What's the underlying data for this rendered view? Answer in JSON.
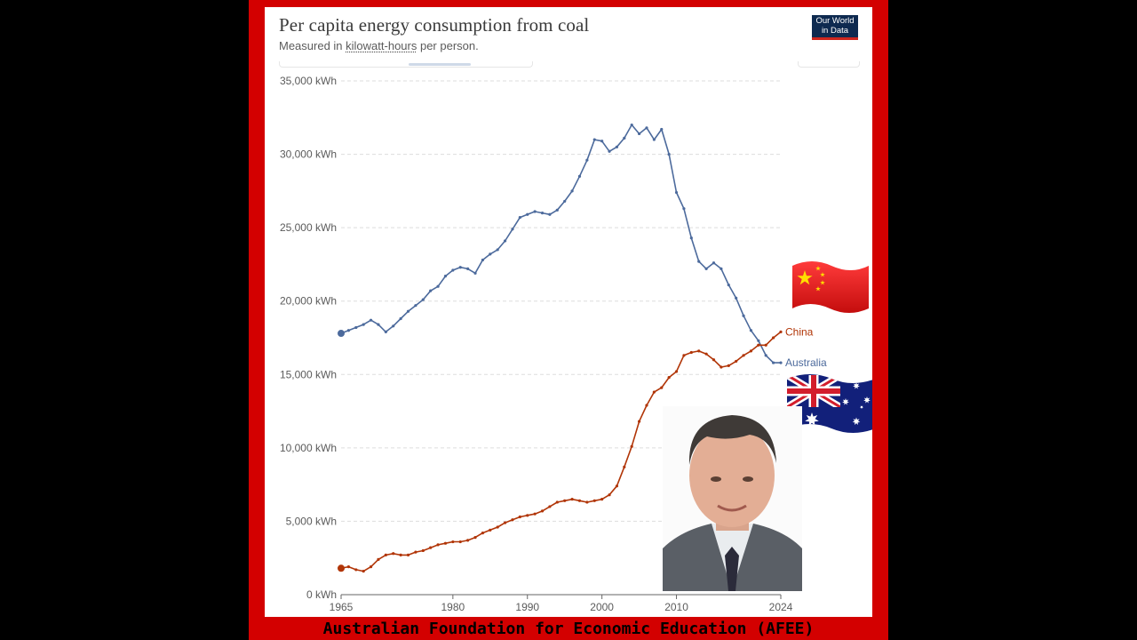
{
  "header": {
    "title": "Per capita energy consumption from coal",
    "subtitle_prefix": "Measured in ",
    "subtitle_unit": "kilowatt-hours",
    "subtitle_suffix": " per person.",
    "logo_line1": "Our World",
    "logo_line2": "in Data"
  },
  "footer": {
    "caption": "Australian Foundation for Economic Education (AFEE)"
  },
  "colors": {
    "frame": "#d30000",
    "australia": "#4c6a9c",
    "china": "#b13507",
    "grid": "#dddddd",
    "axis": "#666666"
  },
  "flags": [
    "china-flag",
    "australia-flag"
  ],
  "photo": "person-photo",
  "chart_data": {
    "type": "line",
    "title": "Per capita energy consumption from coal",
    "subtitle": "Measured in kilowatt-hours per person.",
    "xlabel": "",
    "ylabel": "",
    "xlim": [
      1965,
      2024
    ],
    "ylim": [
      0,
      35000
    ],
    "grid": true,
    "y_ticks": [
      "0 kWh",
      "5,000 kWh",
      "10,000 kWh",
      "15,000 kWh",
      "20,000 kWh",
      "25,000 kWh",
      "30,000 kWh",
      "35,000 kWh"
    ],
    "y_tick_values": [
      0,
      5000,
      10000,
      15000,
      20000,
      25000,
      30000,
      35000
    ],
    "x_ticks": [
      "1965",
      "1980",
      "1990",
      "2000",
      "2010",
      "2024"
    ],
    "x_tick_values": [
      1965,
      1980,
      1990,
      2000,
      2010,
      2024
    ],
    "x": [
      1965,
      1966,
      1967,
      1968,
      1969,
      1970,
      1971,
      1972,
      1973,
      1974,
      1975,
      1976,
      1977,
      1978,
      1979,
      1980,
      1981,
      1982,
      1983,
      1984,
      1985,
      1986,
      1987,
      1988,
      1989,
      1990,
      1991,
      1992,
      1993,
      1994,
      1995,
      1996,
      1997,
      1998,
      1999,
      2000,
      2001,
      2002,
      2003,
      2004,
      2005,
      2006,
      2007,
      2008,
      2009,
      2010,
      2011,
      2012,
      2013,
      2014,
      2015,
      2016,
      2017,
      2018,
      2019,
      2020,
      2021,
      2022,
      2023,
      2024
    ],
    "series": [
      {
        "name": "Australia",
        "values": [
          17800,
          18000,
          18200,
          18400,
          18700,
          18400,
          17900,
          18300,
          18800,
          19300,
          19700,
          20100,
          20700,
          21000,
          21700,
          22100,
          22300,
          22200,
          21900,
          22800,
          23200,
          23500,
          24100,
          24900,
          25700,
          25900,
          26100,
          26000,
          25900,
          26200,
          26800,
          27500,
          28500,
          29600,
          31000,
          30900,
          30200,
          30500,
          31100,
          32000,
          31400,
          31800,
          31000,
          31700,
          30000,
          27400,
          26300,
          24300,
          22700,
          22200,
          22600,
          22200,
          21100,
          20200,
          19000,
          18000,
          17300,
          16300,
          15800,
          15800
        ]
      },
      {
        "name": "China",
        "values": [
          1800,
          1900,
          1700,
          1600,
          1900,
          2400,
          2700,
          2800,
          2700,
          2700,
          2900,
          3000,
          3200,
          3400,
          3500,
          3600,
          3600,
          3700,
          3900,
          4200,
          4400,
          4600,
          4900,
          5100,
          5300,
          5400,
          5500,
          5700,
          6000,
          6300,
          6400,
          6500,
          6400,
          6300,
          6400,
          6500,
          6800,
          7400,
          8700,
          10100,
          11800,
          12900,
          13800,
          14100,
          14800,
          15200,
          16300,
          16500,
          16600,
          16400,
          16000,
          15500,
          15600,
          15900,
          16300,
          16600,
          17000,
          17000,
          17500,
          17900
        ]
      }
    ]
  }
}
